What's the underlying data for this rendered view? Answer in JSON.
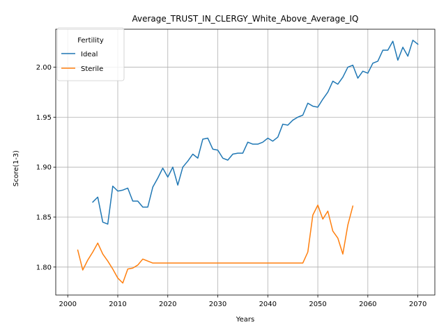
{
  "chart_data": {
    "type": "line",
    "title": "Average_TRUST_IN_CLERGY_White_Above_Average_IQ",
    "xlabel": "Years",
    "ylabel": "Score(1-3)",
    "xlim": [
      1997.6,
      2073.4
    ],
    "ylim": [
      1.772,
      2.038
    ],
    "xticks": [
      2000,
      2010,
      2020,
      2030,
      2040,
      2050,
      2060,
      2070
    ],
    "yticks": [
      1.8,
      1.85,
      1.9,
      1.95,
      2.0
    ],
    "ytick_labels": [
      "1.80",
      "1.85",
      "1.90",
      "1.95",
      "2.00"
    ],
    "grid": true,
    "legend": {
      "title": "Fertility",
      "placement": "upper left"
    },
    "series": [
      {
        "name": "Ideal",
        "color": "#1f77b4",
        "x": [
          2005,
          2006,
          2007,
          2008,
          2009,
          2010,
          2011,
          2012,
          2013,
          2014,
          2015,
          2016,
          2017,
          2018,
          2019,
          2020,
          2021,
          2022,
          2023,
          2024,
          2025,
          2026,
          2027,
          2028,
          2029,
          2030,
          2031,
          2032,
          2033,
          2034,
          2035,
          2036,
          2037,
          2038,
          2039,
          2040,
          2041,
          2042,
          2043,
          2044,
          2045,
          2046,
          2047,
          2048,
          2049,
          2050,
          2051,
          2052,
          2053,
          2054,
          2055,
          2056,
          2057,
          2058,
          2059,
          2060,
          2061,
          2062,
          2063,
          2064,
          2065,
          2066,
          2067,
          2068,
          2069,
          2070
        ],
        "y": [
          1.865,
          1.87,
          1.845,
          1.843,
          1.881,
          1.876,
          1.877,
          1.879,
          1.866,
          1.866,
          1.86,
          1.86,
          1.88,
          1.889,
          1.899,
          1.89,
          1.9,
          1.882,
          1.9,
          1.906,
          1.913,
          1.909,
          1.928,
          1.929,
          1.918,
          1.917,
          1.909,
          1.907,
          1.913,
          1.914,
          1.914,
          1.925,
          1.923,
          1.923,
          1.925,
          1.929,
          1.926,
          1.93,
          1.943,
          1.942,
          1.947,
          1.95,
          1.952,
          1.964,
          1.961,
          1.96,
          1.968,
          1.975,
          1.986,
          1.983,
          1.99,
          2.0,
          2.002,
          1.989,
          1.996,
          1.994,
          2.004,
          2.006,
          2.017,
          2.017,
          2.026,
          2.007,
          2.02,
          2.011,
          2.027,
          2.023
        ]
      },
      {
        "name": "Sterile",
        "color": "#ff7f0e",
        "x": [
          2002,
          2003,
          2004,
          2005,
          2006,
          2007,
          2008,
          2009,
          2010,
          2011,
          2012,
          2013,
          2014,
          2015,
          2016,
          2017,
          2018,
          2019,
          2020,
          2021,
          2022,
          2023,
          2024,
          2025,
          2026,
          2027,
          2028,
          2029,
          2030,
          2031,
          2032,
          2033,
          2034,
          2035,
          2036,
          2037,
          2038,
          2039,
          2040,
          2041,
          2042,
          2043,
          2044,
          2045,
          2046,
          2047,
          2048,
          2049,
          2050,
          2051,
          2052,
          2053,
          2054,
          2055,
          2056,
          2057
        ],
        "y": [
          1.817,
          1.797,
          1.807,
          1.815,
          1.824,
          1.813,
          1.806,
          1.798,
          1.789,
          1.784,
          1.798,
          1.799,
          1.802,
          1.808,
          1.806,
          1.804,
          1.804,
          1.804,
          1.804,
          1.804,
          1.804,
          1.804,
          1.804,
          1.804,
          1.804,
          1.804,
          1.804,
          1.804,
          1.804,
          1.804,
          1.804,
          1.804,
          1.804,
          1.804,
          1.804,
          1.804,
          1.804,
          1.804,
          1.804,
          1.804,
          1.804,
          1.804,
          1.804,
          1.804,
          1.804,
          1.804,
          1.815,
          1.852,
          1.862,
          1.848,
          1.856,
          1.836,
          1.829,
          1.813,
          1.842,
          1.861
        ]
      }
    ]
  }
}
